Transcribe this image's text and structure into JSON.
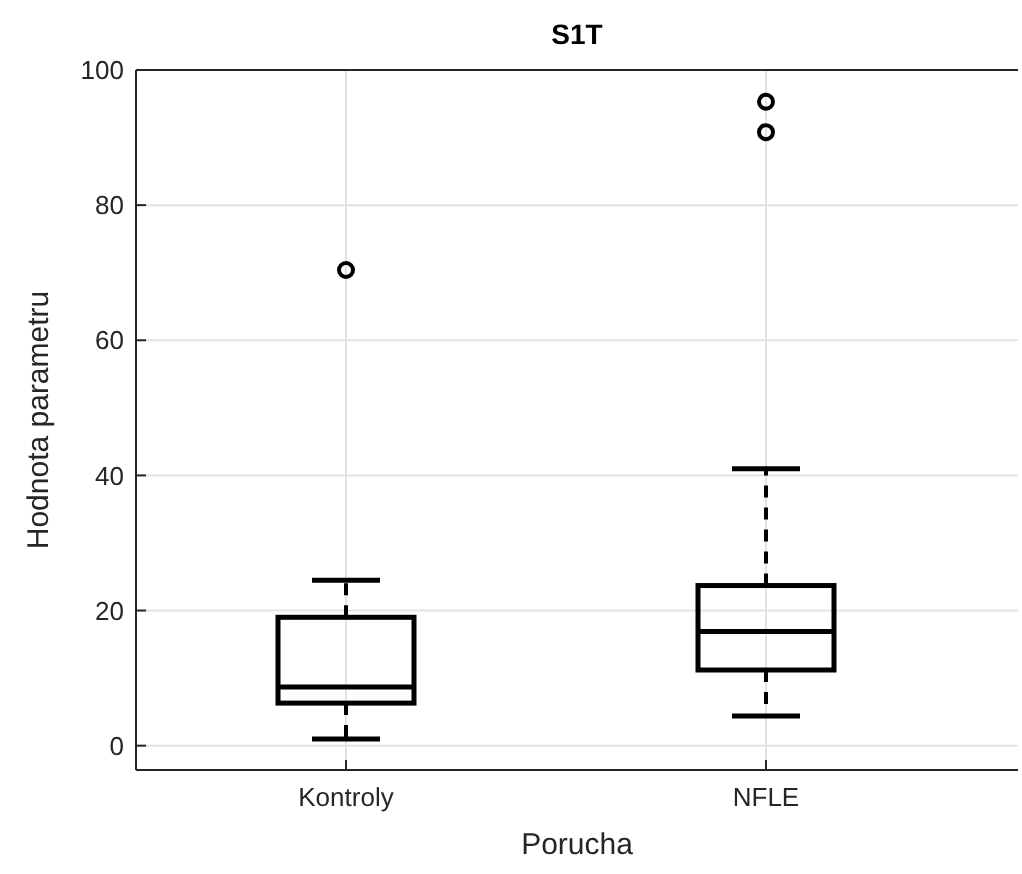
{
  "chart_data": {
    "type": "box",
    "title": "S1T",
    "xlabel": "Porucha",
    "ylabel": "Hodnota parametru",
    "categories": [
      "Kontroly",
      "NFLE"
    ],
    "boxes": [
      {
        "low": 1.0,
        "q1": 6.3,
        "median": 8.7,
        "q3": 19.0,
        "high": 24.5,
        "outliers": [
          70.4
        ]
      },
      {
        "low": 4.4,
        "q1": 11.2,
        "median": 16.9,
        "q3": 23.7,
        "high": 41.0,
        "outliers": [
          90.8,
          95.3
        ]
      }
    ],
    "ylim": [
      -3.6,
      100
    ],
    "yticks": [
      0,
      20,
      40,
      60,
      80,
      100
    ],
    "grid": true,
    "line_style": "dashed",
    "marker": "circle"
  }
}
